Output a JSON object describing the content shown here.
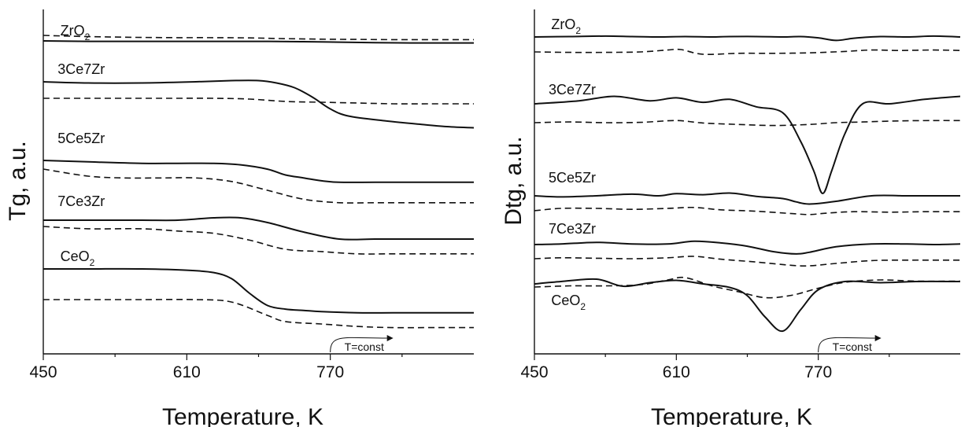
{
  "chart_data": [
    {
      "type": "line",
      "title": "",
      "xlabel": "Temperature, K",
      "ylabel": "Tg, a.u.",
      "x_ticks": [
        450,
        610,
        770
      ],
      "xlim": [
        450,
        930
      ],
      "y_axis_numbered": false,
      "annotation": "T=const",
      "annotation_x": 770,
      "series": [
        {
          "name": "ZrO2",
          "label_main": "ZrO",
          "label_sub": "2",
          "label_x": 469,
          "style": "solid",
          "x": [
            450,
            500,
            540,
            600,
            660,
            700,
            740,
            780,
            820,
            860,
            900,
            930
          ],
          "y": [
            0.97,
            0.95,
            0.95,
            0.95,
            0.95,
            0.95,
            0.94,
            0.92,
            0.9,
            0.89,
            0.89,
            0.89
          ]
        },
        {
          "name": "ZrO2",
          "style": "dashed",
          "x": [
            450,
            480,
            520,
            560,
            600,
            640,
            680,
            720,
            760,
            800,
            840,
            880,
            930
          ],
          "y": [
            1.0,
            0.97,
            0.94,
            0.92,
            0.91,
            0.91,
            0.9,
            0.87,
            0.85,
            0.84,
            0.83,
            0.83,
            0.83
          ]
        },
        {
          "name": "3Ce7Zr",
          "label_main": "3Ce7Zr",
          "label_x": 466,
          "style": "solid",
          "x": [
            450,
            500,
            560,
            620,
            660,
            690,
            710,
            730,
            750,
            770,
            790,
            830,
            870,
            900,
            930
          ],
          "y": [
            0.63,
            0.62,
            0.62,
            0.63,
            0.64,
            0.64,
            0.62,
            0.58,
            0.5,
            0.4,
            0.34,
            0.3,
            0.27,
            0.25,
            0.24
          ]
        },
        {
          "name": "3Ce7Zr",
          "style": "dashed",
          "x": [
            450,
            500,
            560,
            600,
            640,
            680,
            720,
            760,
            800,
            840,
            880,
            930
          ],
          "y": [
            0.56,
            0.56,
            0.56,
            0.56,
            0.56,
            0.55,
            0.52,
            0.51,
            0.5,
            0.49,
            0.49,
            0.49
          ]
        },
        {
          "name": "5Ce5Zr",
          "label_main": "5Ce5Zr",
          "label_x": 466,
          "style": "solid",
          "x": [
            450,
            500,
            560,
            600,
            640,
            670,
            700,
            720,
            740,
            760,
            780,
            820,
            860,
            900,
            930
          ],
          "y": [
            0.0,
            -0.01,
            -0.02,
            -0.02,
            -0.02,
            -0.03,
            -0.06,
            -0.1,
            -0.12,
            -0.14,
            -0.15,
            -0.15,
            -0.15,
            -0.15,
            -0.15
          ]
        },
        {
          "name": "5Ce5Zr",
          "style": "dashed",
          "x": [
            450,
            500,
            540,
            580,
            620,
            660,
            700,
            740,
            780,
            820,
            860,
            900,
            930
          ],
          "y": [
            -0.02,
            -0.06,
            -0.07,
            -0.07,
            -0.07,
            -0.09,
            -0.14,
            -0.19,
            -0.21,
            -0.21,
            -0.21,
            -0.21,
            -0.21
          ]
        },
        {
          "name": "7Ce3Zr",
          "label_main": "7Ce3Zr",
          "label_x": 466,
          "style": "solid",
          "x": [
            450,
            500,
            560,
            600,
            640,
            670,
            700,
            740,
            780,
            820,
            860,
            900,
            930
          ],
          "y": [
            0.0,
            0.0,
            0.0,
            0.0,
            0.01,
            0.01,
            -0.01,
            -0.05,
            -0.08,
            -0.08,
            -0.08,
            -0.08,
            -0.08
          ]
        },
        {
          "name": "7Ce3Zr",
          "style": "dashed",
          "x": [
            450,
            500,
            560,
            600,
            640,
            680,
            720,
            760,
            800,
            840,
            880,
            930
          ],
          "y": [
            -0.03,
            -0.04,
            -0.04,
            -0.05,
            -0.06,
            -0.09,
            -0.13,
            -0.14,
            -0.15,
            -0.15,
            -0.15,
            -0.15
          ]
        },
        {
          "name": "CeO2",
          "label_main": "CeO",
          "label_sub": "2",
          "label_x": 469,
          "style": "solid",
          "x": [
            450,
            500,
            560,
            610,
            640,
            660,
            680,
            700,
            720,
            740,
            760,
            800,
            840,
            880,
            930
          ],
          "y": [
            0.6,
            0.6,
            0.6,
            0.59,
            0.57,
            0.52,
            0.4,
            0.3,
            0.27,
            0.26,
            0.25,
            0.24,
            0.24,
            0.24,
            0.24
          ]
        },
        {
          "name": "CeO2",
          "style": "dashed",
          "x": [
            450,
            500,
            560,
            620,
            660,
            700,
            720,
            760,
            800,
            840,
            880,
            930
          ],
          "y": [
            0.46,
            0.46,
            0.46,
            0.46,
            0.44,
            0.33,
            0.28,
            0.26,
            0.24,
            0.23,
            0.23,
            0.23
          ]
        }
      ]
    },
    {
      "type": "line",
      "title": "",
      "xlabel": "Temperature, K",
      "ylabel": "Dtg, a.u.",
      "x_ticks": [
        450,
        610,
        770
      ],
      "xlim": [
        450,
        930
      ],
      "y_axis_numbered": false,
      "annotation": "T=const",
      "annotation_x": 770,
      "series": [
        {
          "name": "ZrO2",
          "label_main": "ZrO",
          "label_sub": "2",
          "label_x": 469,
          "style": "solid",
          "x": [
            450,
            490,
            530,
            560,
            590,
            620,
            650,
            670,
            700,
            730,
            750,
            770,
            790,
            810,
            840,
            870,
            900,
            930
          ],
          "y": [
            0.0,
            0.01,
            0.02,
            0.01,
            0.0,
            0.01,
            0.0,
            0.01,
            0.01,
            0.0,
            0.01,
            -0.02,
            -0.08,
            -0.03,
            0.01,
            0.0,
            0.02,
            0.0
          ]
        },
        {
          "name": "ZrO2",
          "style": "dashed",
          "x": [
            450,
            490,
            530,
            570,
            600,
            615,
            640,
            680,
            720,
            760,
            800,
            830,
            860,
            900,
            930
          ],
          "y": [
            -0.09,
            -0.1,
            -0.1,
            -0.09,
            -0.05,
            -0.04,
            -0.14,
            -0.12,
            -0.12,
            -0.11,
            -0.08,
            -0.05,
            -0.06,
            -0.05,
            -0.06
          ]
        },
        {
          "name": "3Ce7Zr",
          "label_main": "3Ce7Zr",
          "label_x": 466,
          "style": "solid",
          "x": [
            450,
            500,
            540,
            580,
            610,
            640,
            670,
            700,
            730,
            750,
            765,
            775,
            785,
            800,
            820,
            850,
            890,
            930
          ],
          "y": [
            0.0,
            0.02,
            0.05,
            0.02,
            0.04,
            0.01,
            0.03,
            -0.02,
            -0.06,
            -0.25,
            -0.45,
            -0.6,
            -0.45,
            -0.2,
            0.0,
            0.0,
            0.03,
            0.05
          ]
        },
        {
          "name": "3Ce7Zr",
          "style": "dashed",
          "x": [
            450,
            490,
            530,
            570,
            610,
            640,
            680,
            720,
            760,
            790,
            820,
            860,
            900,
            930
          ],
          "y": [
            -0.08,
            -0.06,
            -0.08,
            -0.07,
            -0.02,
            -0.09,
            -0.13,
            -0.16,
            -0.13,
            -0.08,
            -0.06,
            -0.03,
            -0.02,
            -0.02
          ]
        },
        {
          "name": "5Ce5Zr",
          "label_main": "5Ce5Zr",
          "label_x": 466,
          "style": "solid",
          "x": [
            450,
            480,
            520,
            560,
            590,
            610,
            640,
            670,
            700,
            730,
            745,
            760,
            790,
            830,
            870,
            900,
            930
          ],
          "y": [
            0.0,
            -0.02,
            0.0,
            0.03,
            0.0,
            0.04,
            0.02,
            0.05,
            -0.01,
            -0.05,
            -0.11,
            -0.15,
            -0.1,
            0.0,
            0.0,
            0.0,
            0.0
          ]
        },
        {
          "name": "5Ce5Zr",
          "style": "dashed",
          "x": [
            450,
            480,
            520,
            560,
            600,
            630,
            660,
            700,
            740,
            760,
            780,
            810,
            850,
            890,
            930
          ],
          "y": [
            -0.15,
            -0.1,
            -0.1,
            -0.12,
            -0.1,
            -0.08,
            -0.13,
            -0.16,
            -0.21,
            -0.23,
            -0.2,
            -0.17,
            -0.18,
            -0.17,
            -0.17
          ]
        },
        {
          "name": "7Ce3Zr",
          "label_main": "7Ce3Zr",
          "label_x": 466,
          "style": "solid",
          "x": [
            450,
            480,
            520,
            560,
            600,
            630,
            660,
            690,
            720,
            745,
            760,
            790,
            830,
            870,
            900,
            930
          ],
          "y": [
            -0.01,
            0.0,
            0.03,
            0.0,
            0.0,
            0.05,
            0.02,
            -0.04,
            -0.14,
            -0.18,
            -0.15,
            -0.05,
            0.0,
            0.0,
            -0.01,
            0.0
          ]
        },
        {
          "name": "7Ce3Zr",
          "style": "dashed",
          "x": [
            450,
            480,
            520,
            560,
            600,
            630,
            660,
            700,
            740,
            760,
            790,
            830,
            870,
            900,
            930
          ],
          "y": [
            -0.1,
            -0.08,
            -0.09,
            -0.1,
            -0.08,
            -0.05,
            -0.11,
            -0.17,
            -0.24,
            -0.25,
            -0.2,
            -0.14,
            -0.13,
            -0.13,
            -0.13
          ]
        },
        {
          "name": "CeO2",
          "label_main": "CeO",
          "label_sub": "2",
          "label_x": 469,
          "style": "solid",
          "x": [
            450,
            480,
            520,
            550,
            580,
            610,
            640,
            670,
            690,
            710,
            730,
            750,
            770,
            800,
            840,
            880,
            930
          ],
          "y": [
            0.0,
            0.02,
            0.04,
            -0.02,
            0.01,
            0.03,
            0.0,
            -0.03,
            -0.1,
            -0.28,
            -0.4,
            -0.22,
            -0.05,
            0.02,
            0.01,
            0.02,
            0.02
          ]
        },
        {
          "name": "CeO2",
          "style": "dashed",
          "x": [
            450,
            490,
            530,
            570,
            600,
            620,
            650,
            680,
            710,
            740,
            770,
            800,
            840,
            880,
            930
          ],
          "y": [
            -0.32,
            -0.31,
            -0.31,
            -0.3,
            -0.26,
            -0.24,
            -0.31,
            -0.36,
            -0.41,
            -0.39,
            -0.33,
            -0.28,
            -0.26,
            -0.27,
            -0.27
          ]
        }
      ]
    }
  ]
}
